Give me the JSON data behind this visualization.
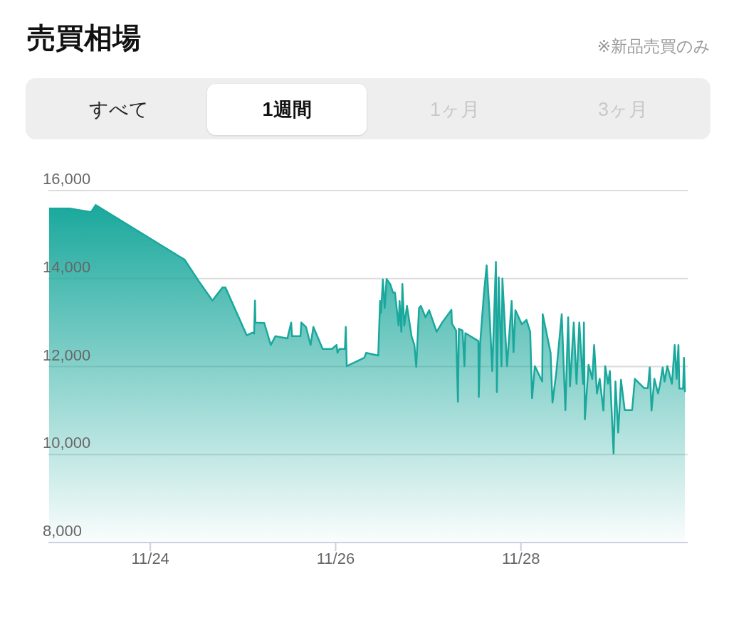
{
  "chart_data": {
    "type": "area",
    "title": "売買相場",
    "subtitle": "※新品売買のみ",
    "annotations": [
      "すべて",
      "1週間",
      "1ヶ月",
      "3ヶ月"
    ],
    "x": [
      "--11-22T21:46",
      "--11-23T03:22",
      "--11-23T08:38",
      "--11-23T09:50",
      "--11-24T08:53",
      "--11-24T12:29",
      "--11-24T16:05",
      "--11-24T18:43",
      "--11-24T19:26",
      "--11-25T00:58",
      "--11-25T02:24",
      "--11-25T02:53",
      "--11-25T03:07",
      "--11-25T03:14",
      "--11-25T05:31",
      "--11-25T07:12",
      "--11-25T08:24",
      "--11-25T11:31",
      "--11-25T12:29",
      "--11-25T12:43",
      "--11-25T14:53",
      "--11-25T15:07",
      "--11-25T16:19",
      "--11-25T17:31",
      "--11-25T18:14",
      "--11-25T20:38",
      "--11-25T23:02",
      "--11-26T00:14",
      "--11-26T00:29",
      "--11-26T00:58",
      "--11-26T02:24",
      "--11-26T02:38",
      "--11-26T02:53",
      "--11-26T07:26",
      "--11-26T07:55",
      "--11-26T11:02",
      "--11-26T11:31",
      "--11-26T11:46",
      "--11-26T12:14",
      "--11-26T12:43",
      "--11-26T13:12",
      "--11-26T14:10",
      "--11-26T14:53",
      "--11-26T15:22",
      "--11-26T16:19",
      "--11-26T16:34",
      "--11-26T17:02",
      "--11-26T17:17",
      "--11-26T17:46",
      "--11-26T18:29",
      "--11-26T19:41",
      "--11-26T20:24",
      "--11-26T20:53",
      "--11-26T21:36",
      "--11-26T22:05",
      "--11-26T23:17",
      "--11-27T00:14",
      "--11-27T02:10",
      "--11-27T03:36",
      "--11-27T06:00",
      "--11-27T06:07",
      "--11-27T07:12",
      "--11-27T07:41",
      "--11-27T07:55",
      "--11-27T08:53",
      "--11-27T09:22",
      "--11-27T09:36",
      "--11-27T12:58",
      "--11-27T13:05",
      "--11-27T13:26",
      "--11-27T14:24",
      "--11-27T15:07",
      "--11-27T15:50",
      "--11-27T16:34",
      "--11-27T17:31",
      "--11-27T17:46",
      "--11-27T18:14",
      "--11-27T18:58",
      "--11-27T19:12",
      "--11-27T20:24",
      "--11-27T21:36",
      "--11-27T22:05",
      "--11-27T22:34",
      "--11-28T00:14",
      "--11-28T01:26",
      "--11-28T02:24",
      "--11-28T02:53",
      "--11-28T03:36",
      "--11-28T05:31",
      "--11-28T05:38",
      "--11-28T07:41",
      "--11-28T08:10",
      "--11-28T09:07",
      "--11-28T10:34",
      "--11-28T11:31",
      "--11-28T12:14",
      "--11-28T12:43",
      "--11-28T13:41",
      "--11-28T14:24",
      "--11-28T15:07",
      "--11-28T16:05",
      "--11-28T16:19",
      "--11-28T16:34",
      "--11-28T17:31",
      "--11-28T18:29",
      "--11-28T18:58",
      "--11-28T19:41",
      "--11-28T20:24",
      "--11-28T21:22",
      "--11-28T21:50",
      "--11-28T22:34",
      "--11-28T23:02",
      "--11-29T00:00",
      "--11-29T00:29",
      "--11-29T01:12",
      "--11-29T01:55",
      "--11-29T02:53",
      "--11-29T04:48",
      "--11-29T05:31",
      "--11-29T07:55",
      "--11-29T08:53",
      "--11-29T09:22",
      "--11-29T09:50",
      "--11-29T10:34",
      "--11-29T11:31",
      "--11-29T12:00",
      "--11-29T12:43",
      "--11-29T13:12",
      "--11-29T13:55",
      "--11-29T15:07",
      "--11-29T15:50",
      "--11-29T16:19",
      "--11-29T16:48",
      "--11-29T17:02",
      "--11-29T18:00",
      "--11-29T18:14",
      "--11-29T18:29"
    ],
    "series": [
      {
        "color": "#1aa89c",
        "values": [
          15590,
          15590,
          15510,
          15670,
          14430,
          13950,
          13500,
          13800,
          13800,
          12710,
          12770,
          12750,
          13500,
          13000,
          12990,
          12490,
          12690,
          12640,
          13000,
          12690,
          12690,
          13000,
          12900,
          12490,
          12900,
          12400,
          12400,
          12490,
          12310,
          12400,
          12400,
          12900,
          12010,
          12200,
          12310,
          12250,
          13490,
          13220,
          13980,
          13330,
          13990,
          13870,
          13680,
          13680,
          12930,
          13490,
          12790,
          13880,
          12930,
          13380,
          12680,
          12490,
          11990,
          13330,
          13380,
          13120,
          13280,
          12790,
          13000,
          13290,
          12980,
          12820,
          11200,
          12860,
          12820,
          12010,
          12760,
          12580,
          11310,
          12520,
          13650,
          14300,
          13280,
          11900,
          14380,
          11420,
          14030,
          12010,
          14000,
          12010,
          13490,
          12330,
          13280,
          12960,
          13060,
          12790,
          11280,
          12010,
          11660,
          13190,
          12310,
          11180,
          11830,
          13190,
          11010,
          13120,
          11550,
          13000,
          11610,
          13000,
          11610,
          13000,
          10800,
          12040,
          11720,
          12490,
          11390,
          11720,
          11000,
          12010,
          11610,
          11900,
          10020,
          11660,
          10500,
          11700,
          11010,
          11010,
          11720,
          11510,
          11510,
          11980,
          11000,
          11720,
          11390,
          11580,
          11980,
          11660,
          12010,
          11610,
          12490,
          11720,
          12490,
          11500,
          11500,
          12200,
          11420
        ]
      }
    ],
    "xlim": [
      "--11-22T21:36",
      "--11-29T19:12"
    ],
    "xticks": [
      {
        "value": "--11-24",
        "label": "11/24"
      },
      {
        "value": "--11-26",
        "label": "11/26"
      },
      {
        "value": "--11-28",
        "label": "11/28"
      }
    ],
    "ylim": [
      8000,
      16000
    ],
    "yticks": [
      {
        "value": 8000,
        "label": "8,000"
      },
      {
        "value": 10000,
        "label": "10,000"
      },
      {
        "value": 12000,
        "label": "12,000"
      },
      {
        "value": 14000,
        "label": "14,000"
      },
      {
        "value": 16000,
        "label": "16,000"
      }
    ],
    "grid": "y",
    "legend": false
  }
}
